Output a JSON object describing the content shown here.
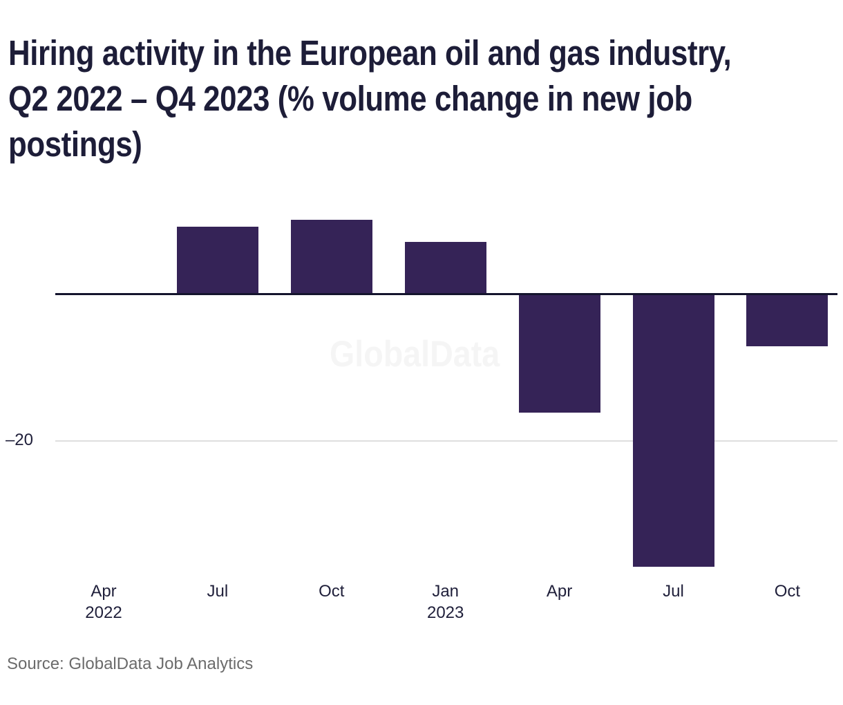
{
  "title_lines": [
    "Hiring activity in the European oil and gas industry,",
    "Q2 2022 – Q4 2023 (% volume change in new job",
    "postings)"
  ],
  "watermark": "GlobalData",
  "source_text": "Source: GlobalData Job Analytics",
  "colors": {
    "bar": "#352357",
    "axis": "#14142d",
    "grid": "#dedede",
    "title_text": "#1d1d38",
    "tick_text": "#1f1f3a",
    "source_text": "#6b6b6b",
    "watermark_text": "#f5f5f5",
    "background": "#ffffff"
  },
  "chart_data": {
    "type": "bar",
    "title": "Hiring activity in the European oil and gas industry, Q2 2022 – Q4 2023 (% volume change in new job postings)",
    "categories": [
      [
        "Apr",
        "2022"
      ],
      [
        "Jul"
      ],
      [
        "Oct"
      ],
      [
        "Jan",
        "2023"
      ],
      [
        "Apr"
      ],
      [
        "Jul"
      ],
      [
        "Oct"
      ]
    ],
    "values": [
      0,
      9,
      10,
      7,
      -16,
      -37,
      -7
    ],
    "xlabel": "",
    "ylabel": "",
    "ylim": [
      -40,
      12
    ],
    "yticks": [
      {
        "value": -20,
        "label": "–20"
      }
    ],
    "grid": "single horizontal gridline at -20; bold zero axis line",
    "legend": "none",
    "watermark": "GlobalData"
  }
}
